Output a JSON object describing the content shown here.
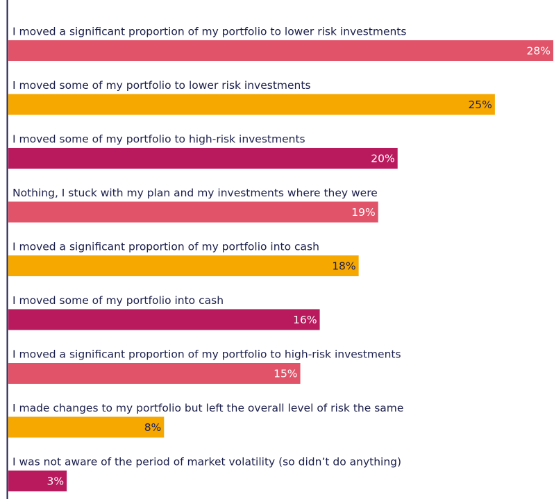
{
  "chart_data": {
    "type": "hbar",
    "categories": [
      "I moved a significant proportion of my portfolio to lower risk investments",
      "I moved some of my portfolio to lower risk investments",
      "I moved some of my portfolio to high-risk investments",
      "Nothing, I stuck with my plan and my investments where they were",
      "I moved a significant proportion of my portfolio into cash",
      "I moved some of my portfolio into cash",
      "I moved a significant proportion of my portfolio to high-risk investments",
      "I made changes to my portfolio but left the overall level of risk the same",
      "I was not aware of the period of market volatility (so didn’t do anything)"
    ],
    "values": [
      28,
      25,
      20,
      19,
      18,
      16,
      15,
      8,
      3
    ],
    "value_labels": [
      "28%",
      "25%",
      "20%",
      "19%",
      "18%",
      "16%",
      "15%",
      "8%",
      "3%"
    ],
    "colors": [
      "#e05369",
      "#f6a800",
      "#b81a5d",
      "#e05369",
      "#f6a800",
      "#b81a5d",
      "#e05369",
      "#f6a800",
      "#b81a5d"
    ],
    "value_label_colors": [
      "#ffffff",
      "#1b1f4b",
      "#ffffff",
      "#ffffff",
      "#1b1f4b",
      "#ffffff",
      "#ffffff",
      "#1b1f4b",
      "#ffffff"
    ]
  }
}
